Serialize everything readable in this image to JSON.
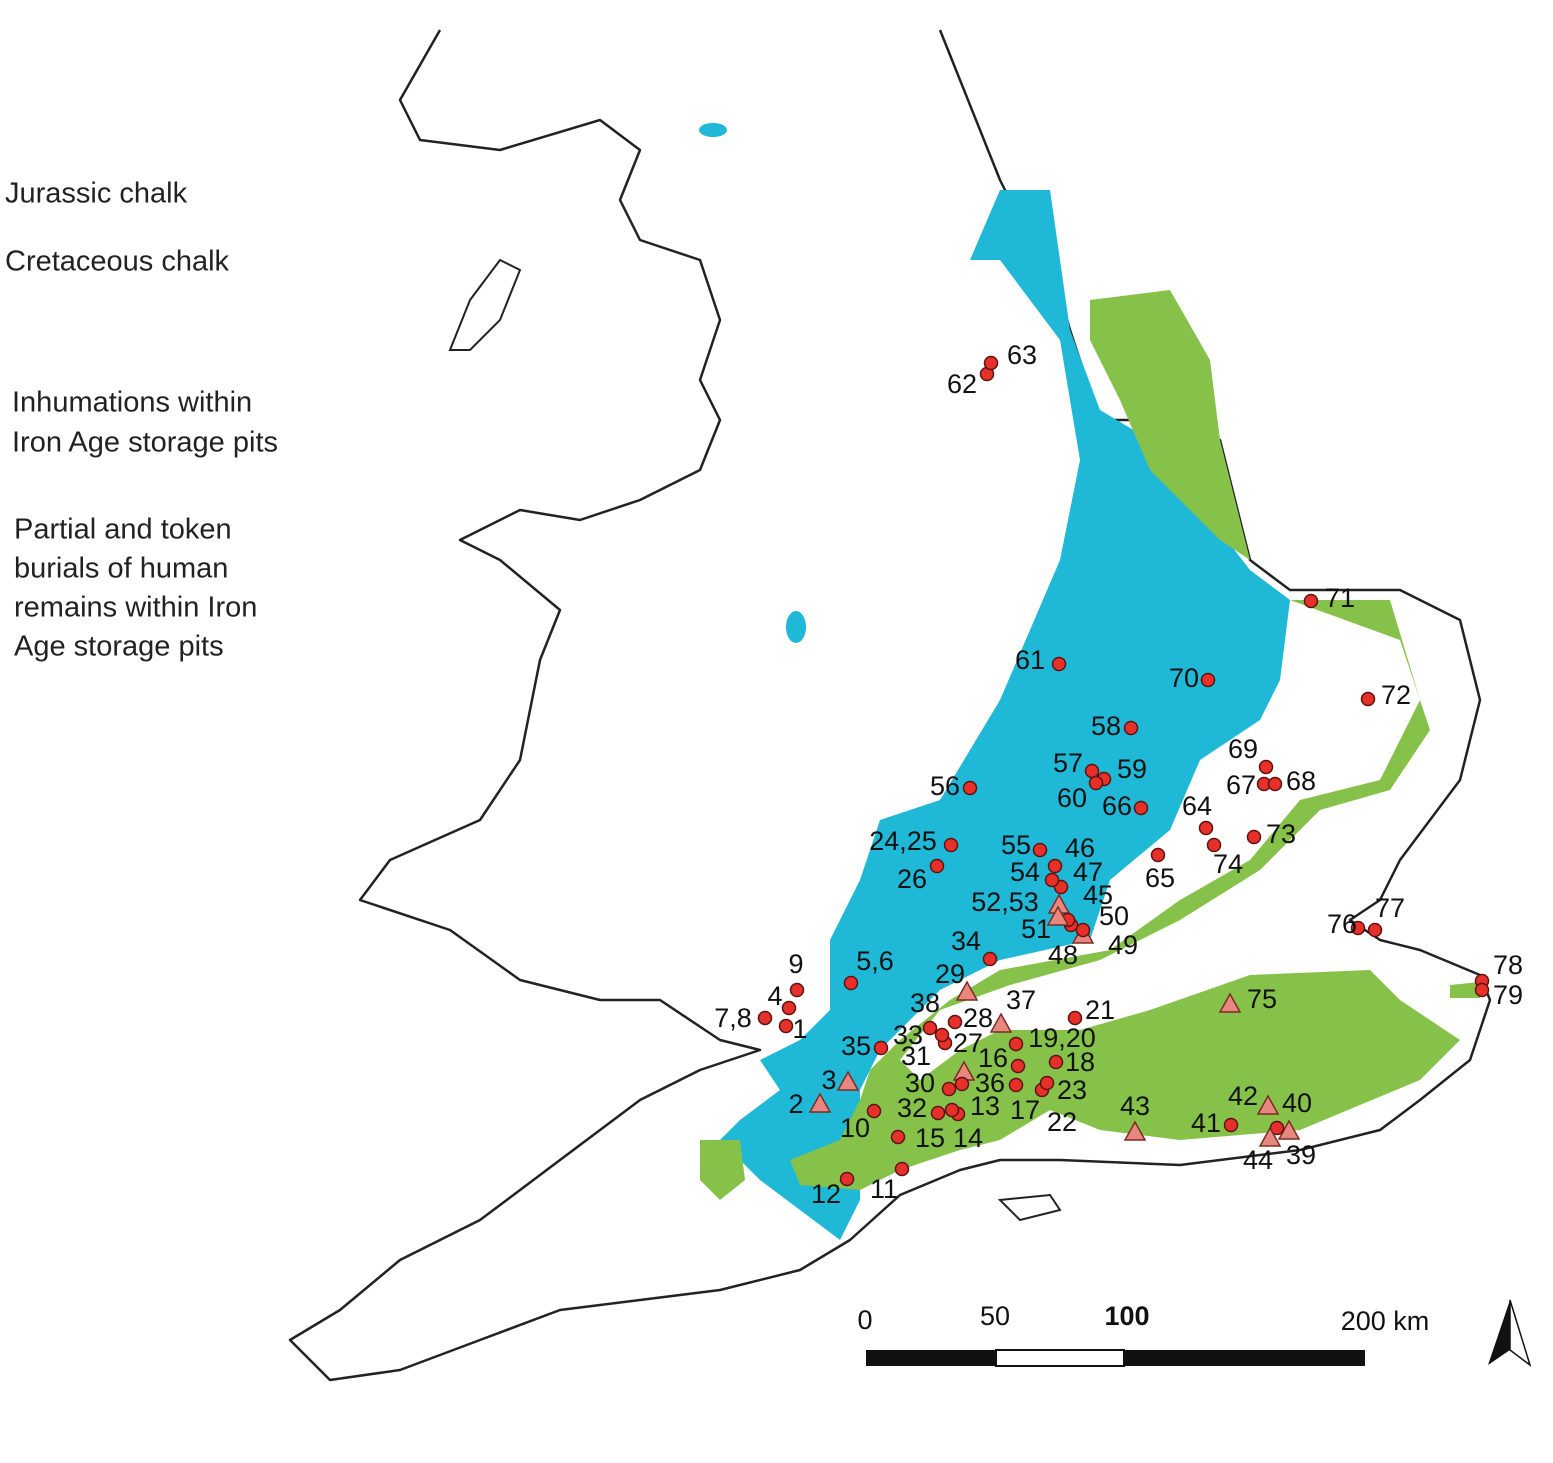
{
  "legend": {
    "items": [
      {
        "lines": [
          "Jurassic chalk"
        ]
      },
      {
        "lines": [
          "Cretaceous chalk"
        ]
      },
      {
        "lines": [
          "Inhumations within",
          "Iron Age storage pits"
        ]
      },
      {
        "lines": [
          "Partial and token",
          "burials of human",
          "remains within Iron",
          "Age storage pits"
        ]
      }
    ]
  },
  "sites": [
    {
      "label": "1",
      "symbol": "circle"
    },
    {
      "label": "2",
      "symbol": "triangle"
    },
    {
      "label": "3",
      "symbol": "triangle"
    },
    {
      "label": "4",
      "symbol": "circle"
    },
    {
      "label": "5,6",
      "symbol": "circle"
    },
    {
      "label": "7,8",
      "symbol": "circle"
    },
    {
      "label": "9",
      "symbol": "circle"
    },
    {
      "label": "10",
      "symbol": "circle"
    },
    {
      "label": "11",
      "symbol": "circle"
    },
    {
      "label": "12",
      "symbol": "circle"
    },
    {
      "label": "13",
      "symbol": "circle"
    },
    {
      "label": "14",
      "symbol": "circle"
    },
    {
      "label": "15",
      "symbol": "circle"
    },
    {
      "label": "16",
      "symbol": "circle"
    },
    {
      "label": "17",
      "symbol": "circle"
    },
    {
      "label": "18",
      "symbol": "circle"
    },
    {
      "label": "19,20",
      "symbol": "circle"
    },
    {
      "label": "21",
      "symbol": "circle"
    },
    {
      "label": "22",
      "symbol": "circle"
    },
    {
      "label": "23",
      "symbol": "circle"
    },
    {
      "label": "24,25",
      "symbol": "circle"
    },
    {
      "label": "26",
      "symbol": "circle"
    },
    {
      "label": "27",
      "symbol": "circle"
    },
    {
      "label": "28",
      "symbol": "circle"
    },
    {
      "label": "29",
      "symbol": "triangle"
    },
    {
      "label": "30",
      "symbol": "circle"
    },
    {
      "label": "31",
      "symbol": "triangle"
    },
    {
      "label": "32",
      "symbol": "circle"
    },
    {
      "label": "33",
      "symbol": "circle"
    },
    {
      "label": "34",
      "symbol": "circle"
    },
    {
      "label": "35",
      "symbol": "circle"
    },
    {
      "label": "36",
      "symbol": "circle"
    },
    {
      "label": "37",
      "symbol": "triangle"
    },
    {
      "label": "38",
      "symbol": "circle"
    },
    {
      "label": "39",
      "symbol": "triangle"
    },
    {
      "label": "40",
      "symbol": "triangle"
    },
    {
      "label": "41",
      "symbol": "circle"
    },
    {
      "label": "42",
      "symbol": "circle"
    },
    {
      "label": "43",
      "symbol": "triangle"
    },
    {
      "label": "44",
      "symbol": "triangle"
    },
    {
      "label": "45",
      "symbol": "triangle"
    },
    {
      "label": "46",
      "symbol": "circle"
    },
    {
      "label": "47",
      "symbol": "circle"
    },
    {
      "label": "48",
      "symbol": "triangle"
    },
    {
      "label": "49",
      "symbol": "circle"
    },
    {
      "label": "50",
      "symbol": "circle"
    },
    {
      "label": "51",
      "symbol": "circle"
    },
    {
      "label": "52,53",
      "symbol": "triangle"
    },
    {
      "label": "54",
      "symbol": "circle"
    },
    {
      "label": "55",
      "symbol": "circle"
    },
    {
      "label": "56",
      "symbol": "circle"
    },
    {
      "label": "57",
      "symbol": "circle"
    },
    {
      "label": "58",
      "symbol": "circle"
    },
    {
      "label": "59",
      "symbol": "circle"
    },
    {
      "label": "60",
      "symbol": "circle"
    },
    {
      "label": "61",
      "symbol": "circle"
    },
    {
      "label": "62",
      "symbol": "circle"
    },
    {
      "label": "63",
      "symbol": "circle"
    },
    {
      "label": "64",
      "symbol": "circle"
    },
    {
      "label": "65",
      "symbol": "circle"
    },
    {
      "label": "66",
      "symbol": "circle"
    },
    {
      "label": "67",
      "symbol": "circle"
    },
    {
      "label": "68",
      "symbol": "circle"
    },
    {
      "label": "69",
      "symbol": "circle"
    },
    {
      "label": "70",
      "symbol": "circle"
    },
    {
      "label": "71",
      "symbol": "circle"
    },
    {
      "label": "72",
      "symbol": "circle"
    },
    {
      "label": "73",
      "symbol": "circle"
    },
    {
      "label": "74",
      "symbol": "circle"
    },
    {
      "label": "75",
      "symbol": "triangle"
    },
    {
      "label": "76",
      "symbol": "circle"
    },
    {
      "label": "77",
      "symbol": "circle"
    },
    {
      "label": "78",
      "symbol": "circle"
    },
    {
      "label": "79",
      "symbol": "circle"
    }
  ],
  "scale": {
    "labels": [
      "0",
      "50",
      "100",
      "200 km"
    ]
  }
}
